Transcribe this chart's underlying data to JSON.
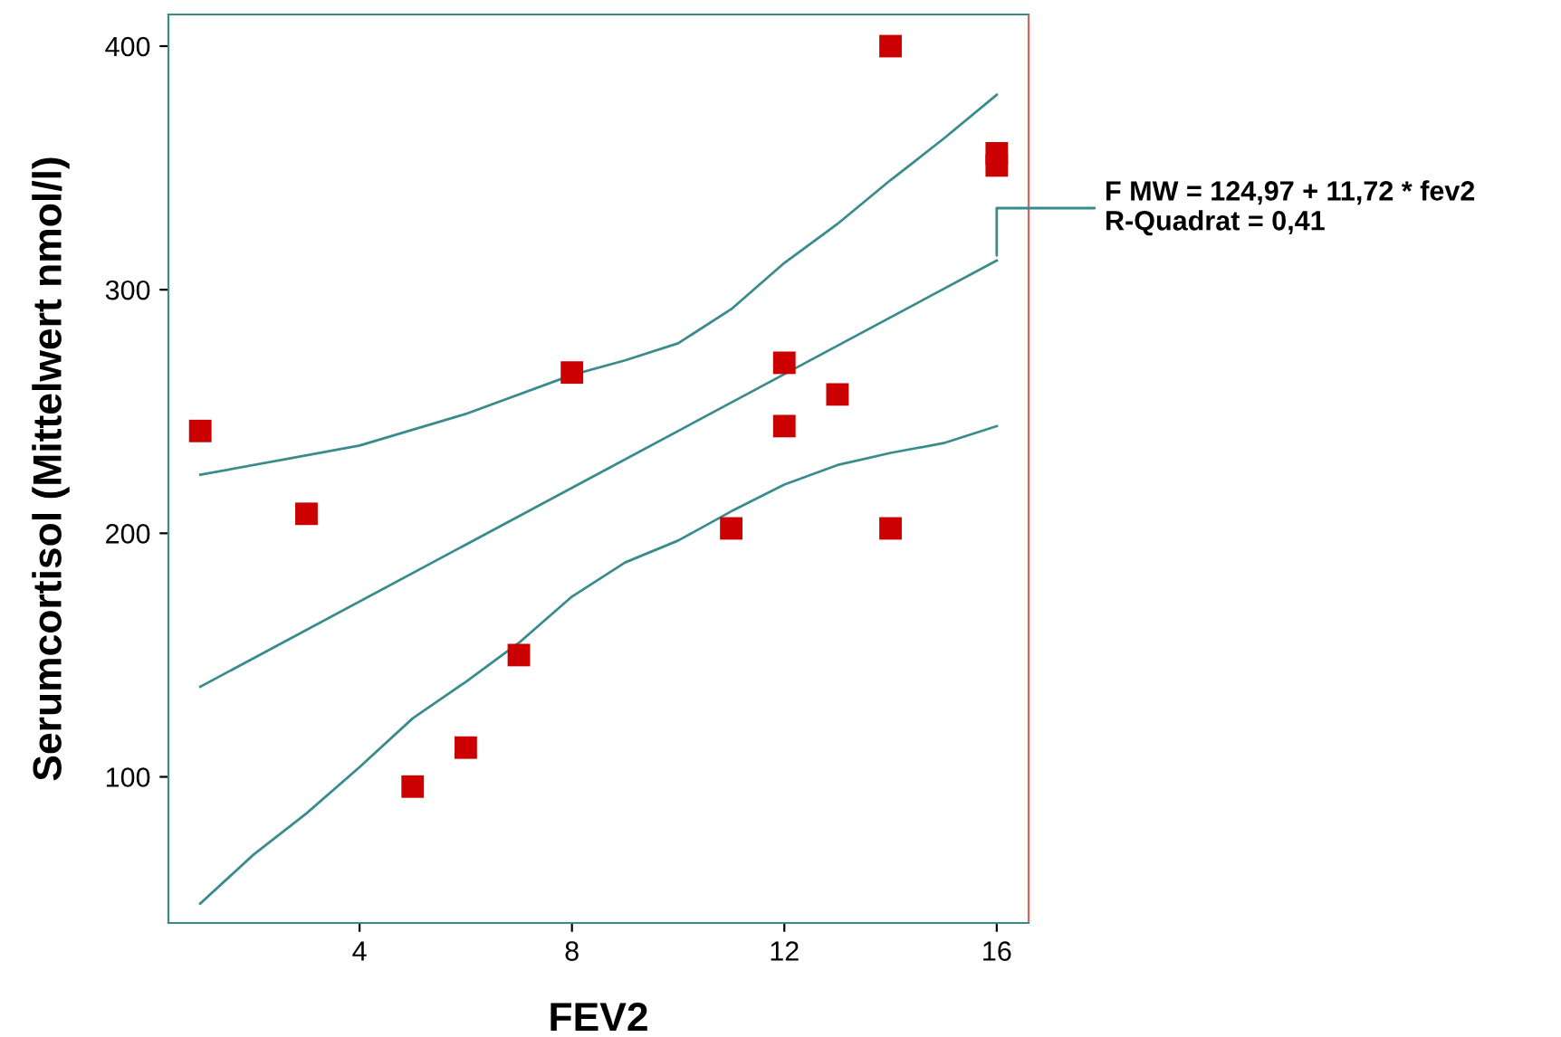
{
  "chart_data": {
    "type": "scatter",
    "xlabel": "FEV2",
    "ylabel": "Serumcortisol (Mittelwert nmol/l)",
    "xlim": [
      0.4,
      16.6
    ],
    "ylim": [
      40,
      413
    ],
    "xticks": [
      4,
      8,
      12,
      16
    ],
    "yticks": [
      100,
      200,
      300,
      400
    ],
    "grid": false,
    "legend": false,
    "series": [
      {
        "color": "#cc0000",
        "marker": "square",
        "x": [
          1,
          3,
          5,
          6,
          7,
          8,
          11,
          12,
          12,
          13,
          14,
          14,
          16,
          16
        ],
        "values": [
          242,
          208,
          96,
          112,
          150,
          266,
          202,
          270,
          244,
          257,
          400,
          202,
          356,
          351
        ]
      },
      {
        "type": "line",
        "color": "#3a8c8c",
        "marker": "none",
        "line_style": "solid",
        "x": [
          1,
          16
        ],
        "values": [
          137,
          312
        ]
      },
      {
        "type": "line",
        "color": "#3a8c8c",
        "marker": "none",
        "line_style": "solid",
        "x": [
          1,
          4,
          6,
          8,
          9,
          10,
          11,
          12,
          13,
          14,
          15,
          16
        ],
        "values": [
          224,
          236,
          249,
          265,
          271,
          278,
          292,
          311,
          327,
          345,
          362,
          380
        ]
      },
      {
        "type": "line",
        "color": "#3a8c8c",
        "marker": "none",
        "line_style": "solid",
        "x": [
          1,
          2,
          3,
          4,
          5,
          6,
          7,
          8,
          9,
          10,
          11,
          12,
          13,
          14,
          15,
          16
        ],
        "values": [
          48,
          68,
          85,
          104,
          124,
          139,
          155,
          174,
          188,
          197,
          209,
          220,
          228,
          233,
          237,
          244
        ]
      }
    ],
    "annotations": [
      {
        "text": "F MW = 124,97 + 11,72 * fev2\nR-Quadrat = 0,41",
        "x": 16,
        "y": 312
      }
    ]
  }
}
